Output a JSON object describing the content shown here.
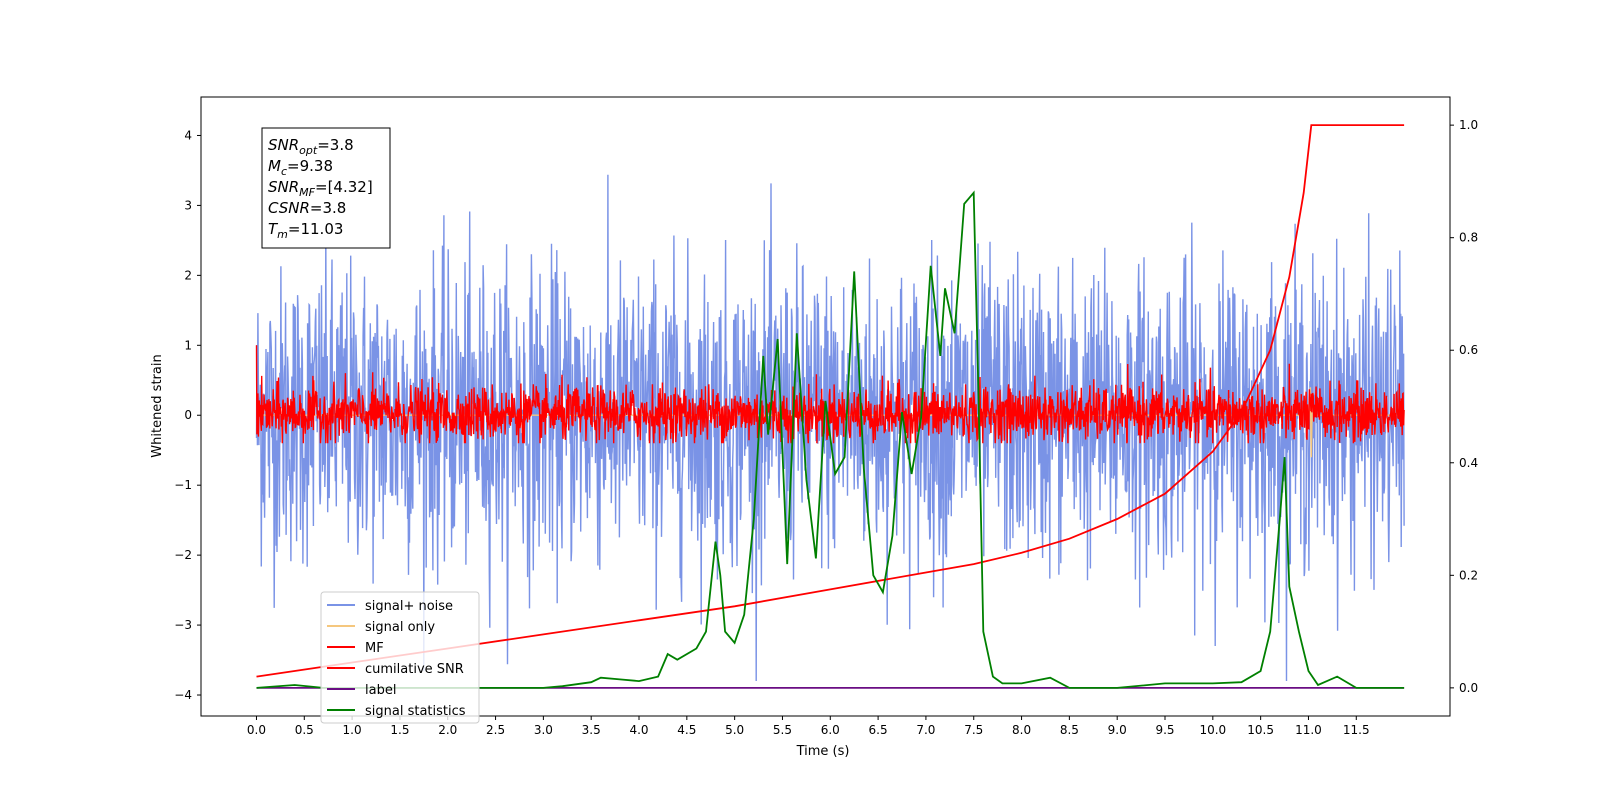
{
  "chart_data": {
    "type": "line",
    "xlabel": "Time (s)",
    "ylabel": "Whitened strain",
    "xlim": [
      -0.58,
      12.48
    ],
    "ylim_left": [
      -4.3,
      4.55
    ],
    "ylim_right": [
      -0.05,
      1.05
    ],
    "x_ticks": [
      0.0,
      0.5,
      1.0,
      1.5,
      2.0,
      2.5,
      3.0,
      3.5,
      4.0,
      4.5,
      5.0,
      5.5,
      6.0,
      6.5,
      7.0,
      7.5,
      8.0,
      8.5,
      9.0,
      9.5,
      10.0,
      10.5,
      11.0,
      11.5
    ],
    "x_tick_labels": [
      "0.0",
      "0.5",
      "1.0",
      "1.5",
      "2.0",
      "2.5",
      "3.0",
      "3.5",
      "4.0",
      "4.5",
      "5.0",
      "5.5",
      "6.0",
      "6.5",
      "7.0",
      "7.5",
      "8.0",
      "8.5",
      "9.0",
      "9.5",
      "10.0",
      "10.5",
      "11.0",
      "11.5"
    ],
    "y_ticks_left": [
      -4,
      -3,
      -2,
      -1,
      0,
      1,
      2,
      3,
      4
    ],
    "y_tick_labels_left": [
      "−4",
      "−3",
      "−2",
      "−1",
      "0",
      "1",
      "2",
      "3",
      "4"
    ],
    "y_ticks_right": [
      0.0,
      0.2,
      0.4,
      0.6,
      0.8,
      1.0
    ],
    "y_tick_labels_right": [
      "0.0",
      "0.2",
      "0.4",
      "0.6",
      "0.8",
      "1.0"
    ],
    "grid": false,
    "legend_position": "bottom-left",
    "info_box": [
      {
        "sym": "SNR",
        "sub": "opt",
        "val": "=3.8"
      },
      {
        "sym": "M",
        "sub": "c",
        "val": "=9.38"
      },
      {
        "sym": "SNR",
        "sub": "MF",
        "val": "=[4.32]"
      },
      {
        "sym": "CSNR",
        "sub": "",
        "val": "=3.8"
      },
      {
        "sym": "T",
        "sub": "m",
        "val": "=11.03"
      }
    ],
    "series": [
      {
        "name": "signal+ noise",
        "axis": "left",
        "color": "#7a93e6",
        "description_of_shape": "whitened noise spanning roughly -3.8 to 4.2 around zero",
        "x_range": [
          0.0,
          12.0
        ],
        "approx_std": 1.0,
        "approx_max": 4.2,
        "approx_min": -3.8
      },
      {
        "name": "signal only",
        "axis": "left",
        "color": "#f5c77e",
        "x": [
          0.0,
          10.9,
          10.95,
          11.0,
          11.02,
          11.03,
          11.04,
          11.06,
          12.0
        ],
        "y": [
          0.0,
          0.0,
          0.1,
          -0.2,
          0.4,
          -0.6,
          0.2,
          0.0,
          0.0
        ]
      },
      {
        "name": "MF",
        "axis": "left",
        "color": "#ff0000",
        "description_of_shape": "matched filter output, dense red band roughly -0.4 to 0.8 around zero",
        "x_range": [
          0.0,
          12.0
        ],
        "approx_std": 0.2,
        "approx_max": 1.0,
        "approx_min": -0.4
      },
      {
        "name": "cumilative SNR",
        "axis": "right",
        "color": "#ff0000",
        "x": [
          0.0,
          1.0,
          2.0,
          3.0,
          4.0,
          5.0,
          6.0,
          7.0,
          7.5,
          8.0,
          8.5,
          9.0,
          9.5,
          10.0,
          10.3,
          10.6,
          10.8,
          10.95,
          11.03,
          11.5,
          12.0
        ],
        "y": [
          0.02,
          0.045,
          0.07,
          0.095,
          0.12,
          0.145,
          0.175,
          0.205,
          0.22,
          0.24,
          0.265,
          0.3,
          0.345,
          0.42,
          0.49,
          0.6,
          0.73,
          0.88,
          1.0,
          1.0,
          1.0
        ]
      },
      {
        "name": "label",
        "axis": "right",
        "color": "#6a0d83",
        "x": [
          0.0,
          12.0
        ],
        "y": [
          0.0,
          0.0
        ]
      },
      {
        "name": "signal statistics",
        "axis": "right",
        "color": "#008000",
        "x": [
          0.0,
          0.4,
          0.7,
          2.0,
          3.0,
          3.2,
          3.5,
          3.6,
          3.8,
          4.0,
          4.2,
          4.3,
          4.4,
          4.6,
          4.7,
          4.8,
          4.85,
          4.9,
          5.0,
          5.1,
          5.2,
          5.3,
          5.35,
          5.45,
          5.55,
          5.65,
          5.75,
          5.85,
          5.95,
          6.05,
          6.15,
          6.25,
          6.35,
          6.45,
          6.55,
          6.65,
          6.75,
          6.85,
          6.95,
          7.05,
          7.15,
          7.2,
          7.3,
          7.4,
          7.5,
          7.55,
          7.6,
          7.7,
          7.8,
          8.0,
          8.3,
          8.5,
          9.0,
          9.5,
          10.0,
          10.3,
          10.5,
          10.6,
          10.7,
          10.75,
          10.8,
          10.9,
          11.0,
          11.1,
          11.3,
          11.5,
          12.0
        ],
        "y": [
          0.0,
          0.005,
          0.0,
          0.0,
          0.0,
          0.003,
          0.01,
          0.018,
          0.015,
          0.012,
          0.02,
          0.06,
          0.05,
          0.07,
          0.1,
          0.26,
          0.2,
          0.1,
          0.08,
          0.13,
          0.3,
          0.59,
          0.45,
          0.62,
          0.22,
          0.63,
          0.37,
          0.23,
          0.51,
          0.38,
          0.41,
          0.74,
          0.39,
          0.2,
          0.17,
          0.27,
          0.49,
          0.38,
          0.48,
          0.75,
          0.59,
          0.71,
          0.63,
          0.86,
          0.88,
          0.52,
          0.1,
          0.02,
          0.008,
          0.008,
          0.018,
          0.0,
          0.0,
          0.008,
          0.008,
          0.01,
          0.03,
          0.1,
          0.3,
          0.41,
          0.18,
          0.1,
          0.03,
          0.005,
          0.02,
          0.0,
          0.0
        ]
      }
    ]
  },
  "colors": {
    "signal_noise": "#7a93e6",
    "signal_only": "#f5c77e",
    "mf": "#ff0000",
    "cumulative_snr": "#ff0000",
    "label": "#6a0d83",
    "signal_statistics": "#008000"
  }
}
